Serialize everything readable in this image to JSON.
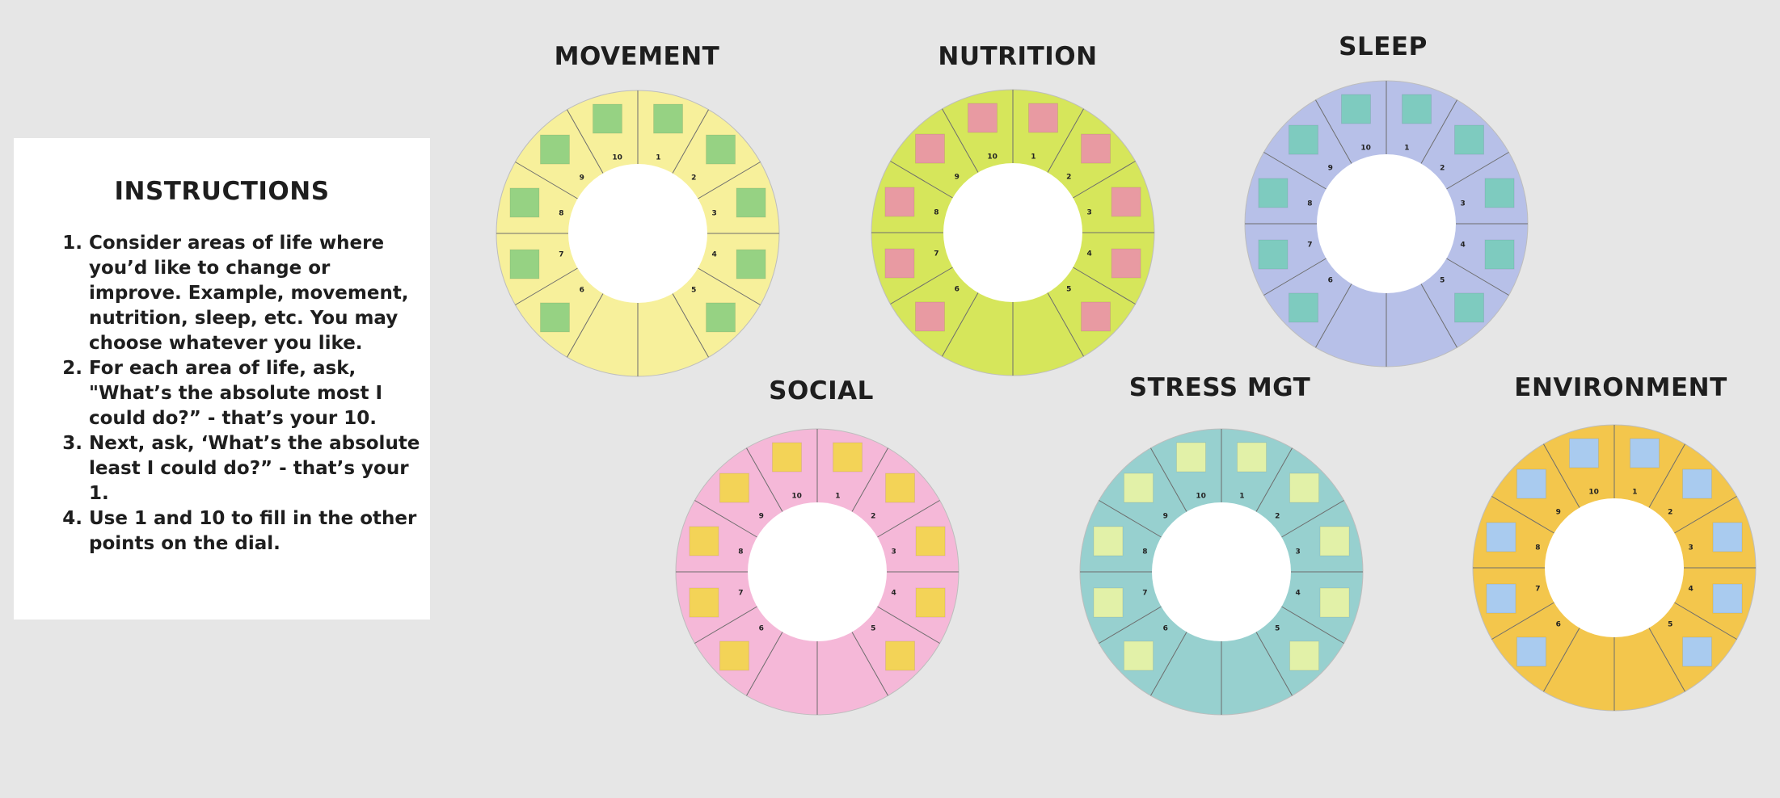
{
  "instructions": {
    "title": "INSTRUCTIONS",
    "steps": [
      "Consider areas of life where you’d like to change or improve. Example, movement, nutrition, sleep, etc. You may choose whatever you like.",
      "For each area of life, ask, \"What’s the absolute most I could do?” - that’s your 10.",
      "Next, ask, ‘What’s the absolute least I could do?” - that’s your 1.",
      "Use 1 and 10 to fill in the other points on the dial."
    ]
  },
  "wheels": [
    {
      "title": "MOVEMENT",
      "ring_color": "#f7f09b",
      "note_color": "#96d283"
    },
    {
      "title": "NUTRITION",
      "ring_color": "#d6e65b",
      "note_color": "#e89aa2"
    },
    {
      "title": "SLEEP",
      "ring_color": "#b7c0e8",
      "note_color": "#7ecbbf"
    },
    {
      "title": "SOCIAL",
      "ring_color": "#f5b8d8",
      "note_color": "#f3d357"
    },
    {
      "title": "STRESS MGT",
      "ring_color": "#97d0cf",
      "note_color": "#e2f1a8"
    },
    {
      "title": "ENVIRONMENT",
      "ring_color": "#f3c64c",
      "note_color": "#a9cbef"
    }
  ],
  "segment_labels": [
    "1",
    "2",
    "3",
    "4",
    "5",
    "6",
    "7",
    "8",
    "9",
    "10"
  ]
}
